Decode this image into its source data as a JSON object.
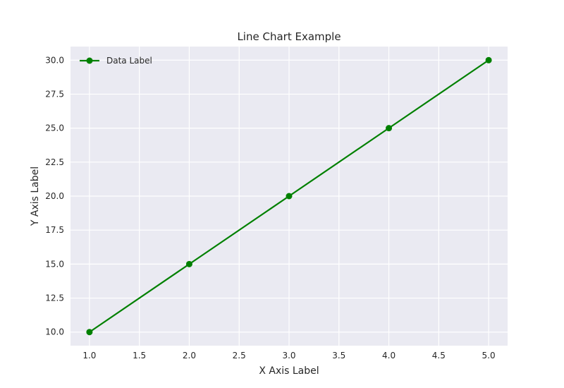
{
  "chart_data": {
    "type": "line",
    "title": "Line Chart Example",
    "xlabel": "X Axis Label",
    "ylabel": "Y Axis Label",
    "xlim": [
      0.81,
      5.19
    ],
    "ylim": [
      9.0,
      31.0
    ],
    "x_ticks": [
      1.0,
      1.5,
      2.0,
      2.5,
      3.0,
      3.5,
      4.0,
      4.5,
      5.0
    ],
    "x_tick_labels": [
      "1.0",
      "1.5",
      "2.0",
      "2.5",
      "3.0",
      "3.5",
      "4.0",
      "4.5",
      "5.0"
    ],
    "y_ticks": [
      10.0,
      12.5,
      15.0,
      17.5,
      20.0,
      22.5,
      25.0,
      27.5,
      30.0
    ],
    "y_tick_labels": [
      "10.0",
      "12.5",
      "15.0",
      "17.5",
      "20.0",
      "22.5",
      "25.0",
      "27.5",
      "30.0"
    ],
    "grid": true,
    "legend_position": "top-left",
    "series": [
      {
        "name": "Data Label",
        "color": "#008000",
        "marker": "circle",
        "x": [
          1,
          2,
          3,
          4,
          5
        ],
        "y": [
          10,
          15,
          20,
          25,
          30
        ]
      }
    ]
  },
  "colors": {
    "plot_background": "#eaeaf2",
    "grid": "#ffffff",
    "text": "#262626"
  }
}
